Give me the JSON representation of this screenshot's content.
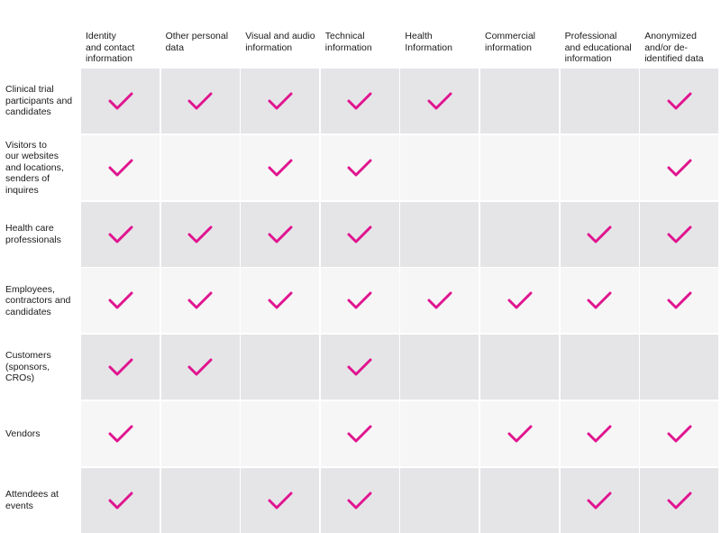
{
  "columns": [
    "Identity\nand contact\ninformation",
    "Other personal\ndata",
    "Visual and audio\ninformation",
    "Technical\ninformation",
    "Health\nInformation",
    "Commercial\ninformation",
    "Professional\nand educational\ninformation",
    "Anonymized\nand/or de-\nidentified data"
  ],
  "rows": [
    {
      "label": "Clinical trial\nparticipants and\ncandidates",
      "checks": [
        1,
        1,
        1,
        1,
        1,
        0,
        0,
        1
      ]
    },
    {
      "label": "Visitors to\nour websites\nand locations,\nsenders of\ninquires",
      "checks": [
        1,
        0,
        1,
        1,
        0,
        0,
        0,
        1
      ]
    },
    {
      "label": "Health care\nprofessionals",
      "checks": [
        1,
        1,
        1,
        1,
        0,
        0,
        1,
        1
      ]
    },
    {
      "label": "Employees,\ncontractors and\ncandidates",
      "checks": [
        1,
        1,
        1,
        1,
        1,
        1,
        1,
        1
      ]
    },
    {
      "label": "Customers\n(sponsors,\nCROs)",
      "checks": [
        1,
        1,
        0,
        1,
        0,
        0,
        0,
        0
      ]
    },
    {
      "label": "Vendors",
      "checks": [
        1,
        0,
        0,
        1,
        0,
        1,
        1,
        1
      ]
    },
    {
      "label": "Attendees at\nevents",
      "checks": [
        1,
        0,
        1,
        1,
        0,
        0,
        1,
        1
      ]
    }
  ],
  "colors": {
    "check": "#e0148f",
    "cell_dark": "#e5e5e8",
    "cell_light": "#f6f6f6"
  },
  "icon": "checkmark-icon"
}
